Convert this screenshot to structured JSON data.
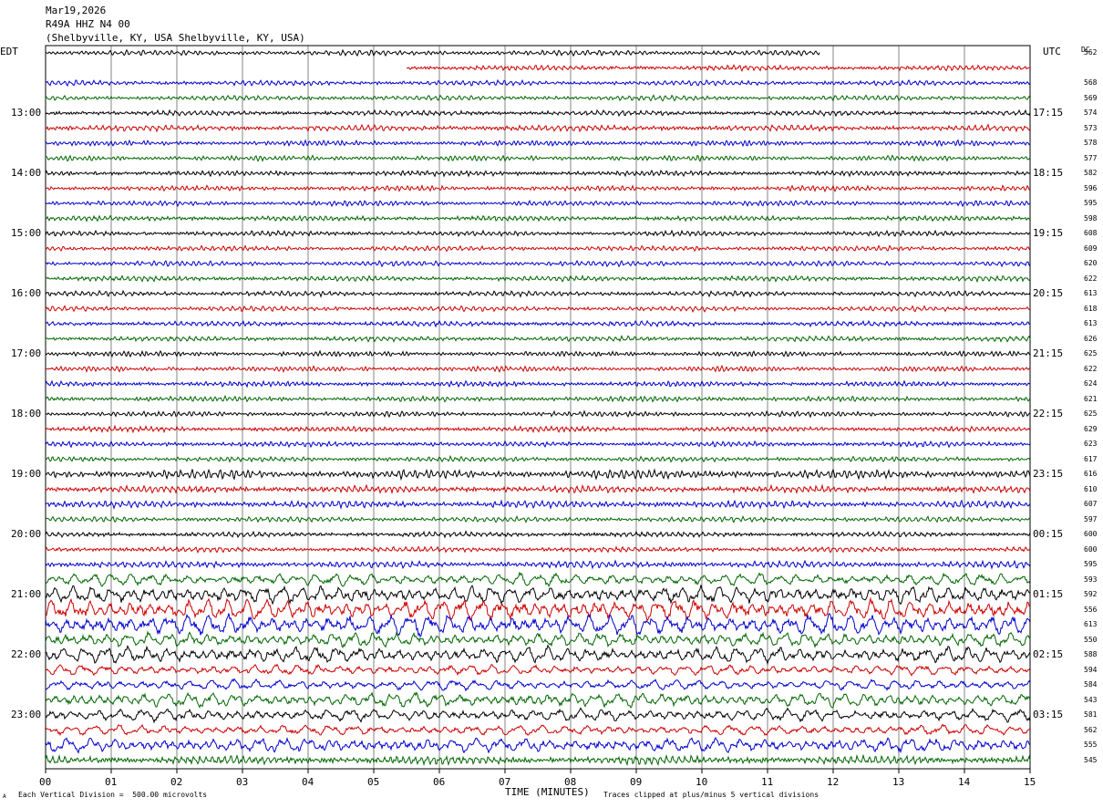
{
  "header": {
    "date": "Mar19,2026",
    "station": "R49A HHZ N4 00",
    "location": "(Shelbyville, KY, USA Shelbyville, KY, USA)"
  },
  "left_timezone": "EDT",
  "right_timezone": "UTC",
  "dc_header": "DC",
  "footer": {
    "left_mark": "A",
    "scale_note": "Each Vertical Division =  500.00 microvolts",
    "clip_note": "Traces clipped at plus/minus 5 vertical divisions"
  },
  "colors": {
    "trace_cycle": [
      "#000000",
      "#cc0000",
      "#0000cc",
      "#006600"
    ],
    "grid": "#000000"
  },
  "chart_data": {
    "type": "line",
    "title": "Mar19,2026 R49A HHZ N4 00 (Shelbyville, KY, USA Shelbyville, KY, USA)",
    "xlabel": "TIME (MINUTES)",
    "x_ticks": [
      "00",
      "01",
      "02",
      "03",
      "04",
      "05",
      "06",
      "07",
      "08",
      "09",
      "10",
      "11",
      "12",
      "13",
      "14",
      "15"
    ],
    "xlim": [
      0,
      15
    ],
    "left_hour_labels": [
      {
        "row": 4,
        "text": "13:00"
      },
      {
        "row": 8,
        "text": "14:00"
      },
      {
        "row": 12,
        "text": "15:00"
      },
      {
        "row": 16,
        "text": "16:00"
      },
      {
        "row": 20,
        "text": "17:00"
      },
      {
        "row": 24,
        "text": "18:00"
      },
      {
        "row": 28,
        "text": "19:00"
      },
      {
        "row": 32,
        "text": "20:00"
      },
      {
        "row": 36,
        "text": "21:00"
      },
      {
        "row": 40,
        "text": "22:00"
      },
      {
        "row": 44,
        "text": "23:00"
      }
    ],
    "right_hour_labels": [
      {
        "row": 4,
        "text": "17:15"
      },
      {
        "row": 8,
        "text": "18:15"
      },
      {
        "row": 12,
        "text": "19:15"
      },
      {
        "row": 16,
        "text": "20:15"
      },
      {
        "row": 20,
        "text": "21:15"
      },
      {
        "row": 24,
        "text": "22:15"
      },
      {
        "row": 28,
        "text": "23:15"
      },
      {
        "row": 32,
        "text": "00:15"
      },
      {
        "row": 36,
        "text": "01:15"
      },
      {
        "row": 40,
        "text": "02:15"
      },
      {
        "row": 44,
        "text": "03:15"
      }
    ],
    "dc_offsets": [
      "562",
      "",
      "568",
      "569",
      "574",
      "573",
      "578",
      "577",
      "582",
      "596",
      "595",
      "598",
      "608",
      "609",
      "620",
      "622",
      "613",
      "618",
      "613",
      "626",
      "625",
      "622",
      "624",
      "621",
      "625",
      "629",
      "623",
      "617",
      "616",
      "610",
      "607",
      "597",
      "600",
      "600",
      "595",
      "593",
      "592",
      "556",
      "613",
      "550",
      "588",
      "594",
      "584",
      "543",
      "581",
      "562",
      "555",
      "545"
    ],
    "series": [
      {
        "row": 0,
        "color": "black",
        "start_min": 0,
        "end_min": 11.8,
        "amplitude": 3
      },
      {
        "row": 1,
        "color": "red",
        "start_min": 5.5,
        "end_min": 15,
        "amplitude": 3
      },
      {
        "row": 2,
        "color": "blue",
        "start_min": 0,
        "end_min": 15,
        "amplitude": 3
      },
      {
        "row": 3,
        "color": "green",
        "start_min": 0,
        "end_min": 15,
        "amplitude": 3
      },
      {
        "row": 4,
        "color": "black",
        "start_min": 0,
        "end_min": 15,
        "amplitude": 3
      },
      {
        "row": 5,
        "color": "red",
        "start_min": 0,
        "end_min": 15,
        "amplitude": 3.5
      },
      {
        "row": 6,
        "color": "blue",
        "start_min": 0,
        "end_min": 15,
        "amplitude": 3
      },
      {
        "row": 7,
        "color": "green",
        "start_min": 0,
        "end_min": 15,
        "amplitude": 3
      },
      {
        "row": 8,
        "color": "black",
        "start_min": 0,
        "end_min": 15,
        "amplitude": 3
      },
      {
        "row": 9,
        "color": "red",
        "start_min": 0,
        "end_min": 15,
        "amplitude": 3
      },
      {
        "row": 10,
        "color": "blue",
        "start_min": 0,
        "end_min": 15,
        "amplitude": 3
      },
      {
        "row": 11,
        "color": "green",
        "start_min": 0,
        "end_min": 15,
        "amplitude": 3
      },
      {
        "row": 12,
        "color": "black",
        "start_min": 0,
        "end_min": 15,
        "amplitude": 3
      },
      {
        "row": 13,
        "color": "red",
        "start_min": 0,
        "end_min": 15,
        "amplitude": 3
      },
      {
        "row": 14,
        "color": "blue",
        "start_min": 0,
        "end_min": 15,
        "amplitude": 3
      },
      {
        "row": 15,
        "color": "green",
        "start_min": 0,
        "end_min": 15,
        "amplitude": 3
      },
      {
        "row": 16,
        "color": "black",
        "start_min": 0,
        "end_min": 15,
        "amplitude": 3
      },
      {
        "row": 17,
        "color": "red",
        "start_min": 0,
        "end_min": 15,
        "amplitude": 3
      },
      {
        "row": 18,
        "color": "blue",
        "start_min": 0,
        "end_min": 15,
        "amplitude": 3
      },
      {
        "row": 19,
        "color": "green",
        "start_min": 0,
        "end_min": 15,
        "amplitude": 3
      },
      {
        "row": 20,
        "color": "black",
        "start_min": 0,
        "end_min": 15,
        "amplitude": 3
      },
      {
        "row": 21,
        "color": "red",
        "start_min": 0,
        "end_min": 15,
        "amplitude": 3
      },
      {
        "row": 22,
        "color": "blue",
        "start_min": 0,
        "end_min": 15,
        "amplitude": 3
      },
      {
        "row": 23,
        "color": "green",
        "start_min": 0,
        "end_min": 15,
        "amplitude": 3
      },
      {
        "row": 24,
        "color": "black",
        "start_min": 0,
        "end_min": 15,
        "amplitude": 3
      },
      {
        "row": 25,
        "color": "red",
        "start_min": 0,
        "end_min": 15,
        "amplitude": 3
      },
      {
        "row": 26,
        "color": "blue",
        "start_min": 0,
        "end_min": 15,
        "amplitude": 3
      },
      {
        "row": 27,
        "color": "green",
        "start_min": 0,
        "end_min": 15,
        "amplitude": 3
      },
      {
        "row": 28,
        "color": "black",
        "start_min": 0,
        "end_min": 15,
        "amplitude": 5
      },
      {
        "row": 29,
        "color": "red",
        "start_min": 0,
        "end_min": 15,
        "amplitude": 4
      },
      {
        "row": 30,
        "color": "blue",
        "start_min": 0,
        "end_min": 15,
        "amplitude": 4
      },
      {
        "row": 31,
        "color": "green",
        "start_min": 0,
        "end_min": 15,
        "amplitude": 3
      },
      {
        "row": 32,
        "color": "black",
        "start_min": 0,
        "end_min": 15,
        "amplitude": 3
      },
      {
        "row": 33,
        "color": "red",
        "start_min": 0,
        "end_min": 15,
        "amplitude": 3
      },
      {
        "row": 34,
        "color": "blue",
        "start_min": 0,
        "end_min": 15,
        "amplitude": 4
      },
      {
        "row": 35,
        "color": "green",
        "start_min": 0,
        "end_min": 15,
        "amplitude": 7
      },
      {
        "row": 36,
        "color": "black",
        "start_min": 0,
        "end_min": 15,
        "amplitude": 10
      },
      {
        "row": 37,
        "color": "red",
        "start_min": 0,
        "end_min": 15,
        "amplitude": 12
      },
      {
        "row": 38,
        "color": "blue",
        "start_min": 0,
        "end_min": 15,
        "amplitude": 12
      },
      {
        "row": 39,
        "color": "green",
        "start_min": 0,
        "end_min": 15,
        "amplitude": 8
      },
      {
        "row": 40,
        "color": "black",
        "start_min": 0,
        "end_min": 15,
        "amplitude": 9
      },
      {
        "row": 41,
        "color": "red",
        "start_min": 0,
        "end_min": 15,
        "amplitude": 6
      },
      {
        "row": 42,
        "color": "blue",
        "start_min": 0,
        "end_min": 15,
        "amplitude": 6
      },
      {
        "row": 43,
        "color": "green",
        "start_min": 0,
        "end_min": 15,
        "amplitude": 8
      },
      {
        "row": 44,
        "color": "black",
        "start_min": 0,
        "end_min": 15,
        "amplitude": 7
      },
      {
        "row": 45,
        "color": "red",
        "start_min": 0,
        "end_min": 15,
        "amplitude": 6
      },
      {
        "row": 46,
        "color": "blue",
        "start_min": 0,
        "end_min": 15,
        "amplitude": 8
      },
      {
        "row": 47,
        "color": "green",
        "start_min": 0,
        "end_min": 15,
        "amplitude": 5
      }
    ],
    "grid": true
  }
}
